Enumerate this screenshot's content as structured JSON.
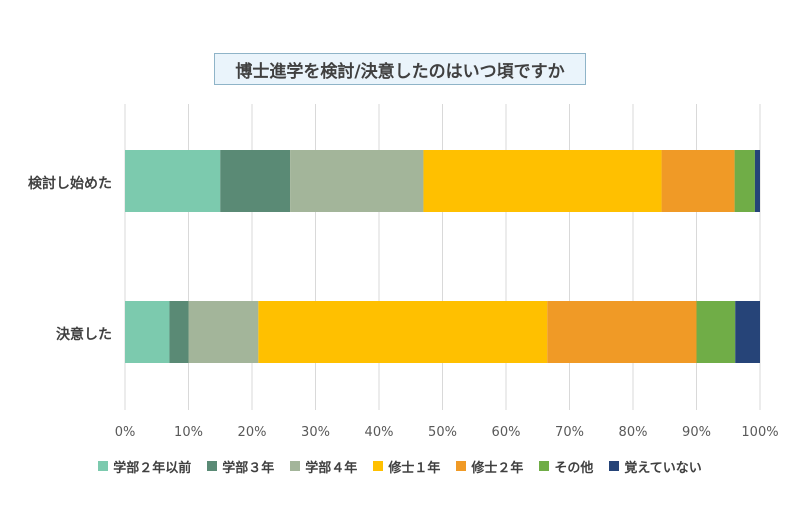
{
  "chart_data": {
    "type": "bar",
    "orientation": "horizontal",
    "stacked": true,
    "percent_stacked": true,
    "title": "博士進学を検討/決意したのはいつ頃ですか",
    "categories": [
      "検討し始めた",
      "決意した"
    ],
    "series": [
      {
        "name": "学部２年以前",
        "color": "#7ccaae",
        "values": [
          15,
          7
        ]
      },
      {
        "name": "学部３年",
        "color": "#5a8a75",
        "values": [
          11,
          3
        ]
      },
      {
        "name": "学部４年",
        "color": "#a3b59a",
        "values": [
          21,
          11
        ]
      },
      {
        "name": "修士１年",
        "color": "#ffc000",
        "values": [
          37.5,
          45.5
        ]
      },
      {
        "name": "修士２年",
        "color": "#f09a26",
        "values": [
          11.5,
          23.5
        ]
      },
      {
        "name": "その他",
        "color": "#70ad47",
        "values": [
          3.2,
          6.1
        ]
      },
      {
        "name": "覚えていない",
        "color": "#264478",
        "values": [
          0.8,
          3.9
        ]
      }
    ],
    "xlim": [
      0,
      100
    ],
    "x_ticks": [
      "0%",
      "10%",
      "20%",
      "30%",
      "40%",
      "50%",
      "60%",
      "70%",
      "80%",
      "90%",
      "100%"
    ],
    "xlabel": "",
    "ylabel": "",
    "grid": "vertical",
    "legend_position": "bottom"
  }
}
